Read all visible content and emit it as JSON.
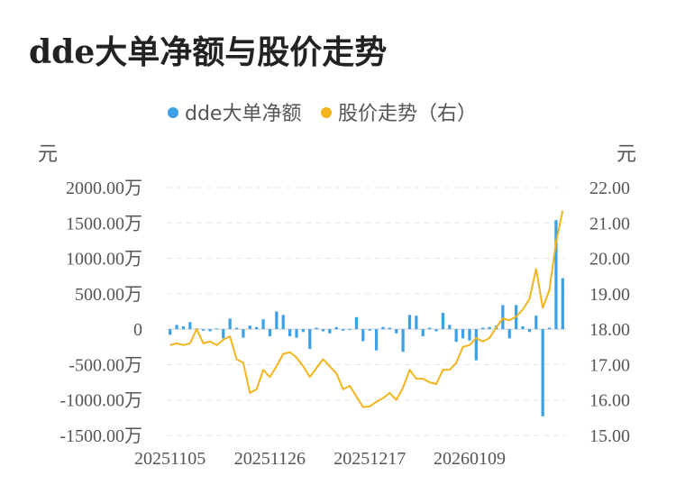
{
  "chart_data": {
    "type": "bar+line",
    "title": "dde大单净额与股价走势",
    "legend": {
      "position": "top-center",
      "items": [
        {
          "name": "dde大单净额",
          "color": "#3aa0e8"
        },
        {
          "name": "股价走势（右）",
          "color": "#f2b51d"
        }
      ]
    },
    "left_axis": {
      "unit": "元",
      "ylim": [
        -1500,
        2000
      ],
      "ticks": [
        2000,
        1500,
        1000,
        500,
        0,
        -500,
        -1000,
        -1500
      ],
      "tick_labels": [
        "2000.00万",
        "1500.00万",
        "1000.00万",
        "500.00万",
        "0",
        "-500.00万",
        "-1000.00万",
        "-1500.00万"
      ]
    },
    "right_axis": {
      "unit": "元",
      "ylim": [
        15,
        22
      ],
      "ticks": [
        22,
        21,
        20,
        19,
        18,
        17,
        16,
        15
      ],
      "tick_labels": [
        "22.00",
        "21.00",
        "20.00",
        "19.00",
        "18.00",
        "17.00",
        "16.00",
        "15.00"
      ]
    },
    "x_tick_labels": [
      {
        "label": "20251105",
        "index": 0
      },
      {
        "label": "20251126",
        "index": 15
      },
      {
        "label": "20251217",
        "index": 30
      },
      {
        "label": "20260109",
        "index": 45
      }
    ],
    "grid": true,
    "series": [
      {
        "name": "dde大单净额",
        "type": "bar",
        "axis": "left",
        "color": "#3aa0e8",
        "values": [
          -80,
          60,
          40,
          100,
          10,
          -20,
          -30,
          10,
          -130,
          150,
          20,
          -120,
          50,
          30,
          140,
          -100,
          250,
          200,
          -100,
          -120,
          -40,
          -280,
          20,
          -30,
          -60,
          30,
          -20,
          -10,
          170,
          -170,
          -20,
          -300,
          30,
          20,
          -60,
          -320,
          200,
          190,
          -100,
          20,
          -30,
          230,
          60,
          -180,
          -130,
          -160,
          -440,
          20,
          30,
          50,
          340,
          -130,
          340,
          40,
          -40,
          190,
          -1230,
          20,
          1540,
          720
        ]
      },
      {
        "name": "股价走势（右）",
        "type": "line",
        "axis": "right",
        "color": "#f2b51d",
        "values": [
          17.55,
          17.6,
          17.55,
          17.6,
          18.0,
          17.6,
          17.65,
          17.55,
          17.7,
          17.8,
          17.15,
          17.05,
          16.2,
          16.3,
          16.85,
          16.65,
          16.95,
          17.3,
          17.35,
          17.2,
          16.95,
          16.65,
          16.9,
          17.15,
          16.95,
          16.75,
          16.3,
          16.4,
          16.1,
          15.8,
          15.82,
          15.95,
          16.05,
          16.2,
          16.0,
          16.35,
          16.85,
          16.6,
          16.6,
          16.5,
          16.45,
          16.85,
          16.85,
          17.05,
          17.5,
          17.55,
          17.75,
          17.65,
          17.75,
          18.05,
          18.3,
          18.25,
          18.35,
          18.55,
          18.85,
          19.7,
          18.6,
          19.1,
          20.45,
          21.35
        ]
      }
    ]
  }
}
